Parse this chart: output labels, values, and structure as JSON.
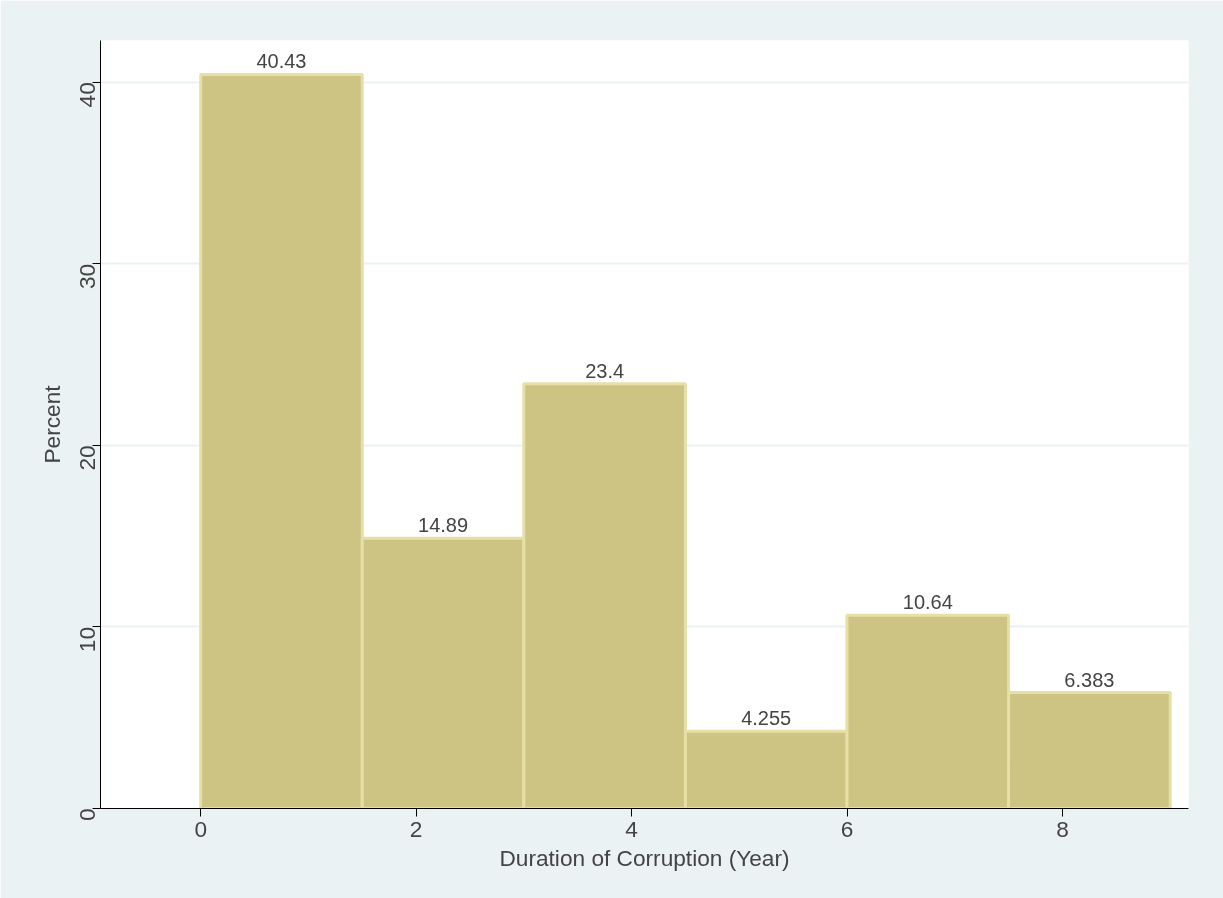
{
  "chart_data": {
    "type": "histogram",
    "xlabel": "Duration of Corruption (Year)",
    "ylabel": "Percent",
    "bins": [
      0,
      1.5,
      3,
      4.5,
      6,
      7.5,
      9
    ],
    "values": [
      40.43,
      14.89,
      23.4,
      4.255,
      10.64,
      6.383
    ],
    "color": "#cdc383",
    "data_labels": true,
    "xlim": [
      -0.93,
      9.17
    ],
    "ylim": [
      0,
      42.3
    ],
    "xticks": [
      0,
      2,
      4,
      6,
      8
    ],
    "yticks": [
      0,
      10,
      20,
      30,
      40
    ],
    "grid": "y"
  }
}
